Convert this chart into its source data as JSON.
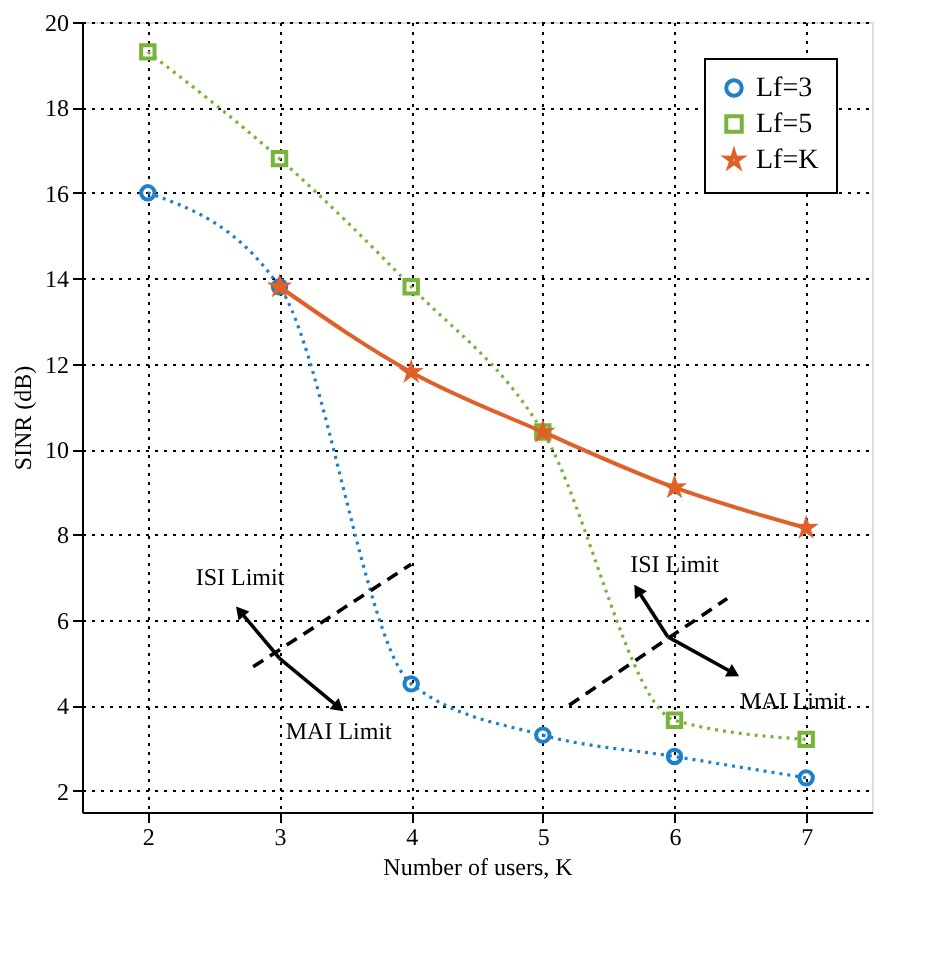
{
  "chart_data": {
    "type": "line",
    "xlabel": "Number of users, K",
    "ylabel": "SINR (dB)",
    "series": [
      {
        "name": "Lf=3",
        "color": "#1f7fc8",
        "x": [
          2,
          3,
          4,
          5,
          6,
          7
        ],
        "values": [
          16,
          13.8,
          4.5,
          3.3,
          2.8,
          2.3
        ],
        "marker": "circle",
        "line_style": "dotted"
      },
      {
        "name": "Lf=5",
        "color": "#78b43c",
        "x": [
          2,
          3,
          4,
          5,
          6,
          7
        ],
        "values": [
          19.3,
          16.8,
          13.8,
          10.4,
          3.65,
          3.2
        ],
        "marker": "square",
        "line_style": "dotted"
      },
      {
        "name": "Lf=K",
        "color": "#e0602a",
        "x": [
          3,
          4,
          5,
          6,
          7
        ],
        "values": [
          13.8,
          11.8,
          10.4,
          9.1,
          8.15
        ],
        "marker": "star",
        "line_style": "solid"
      },
      {
        "color": "#000000",
        "x": [
          2.8,
          4.0
        ],
        "values": [
          4.9,
          7.3
        ],
        "marker": "none",
        "line_style": "dashed"
      },
      {
        "color": "#000000",
        "x": [
          5.2,
          6.4
        ],
        "values": [
          4.0,
          6.5
        ],
        "marker": "none",
        "line_style": "dashed"
      }
    ],
    "xlim": [
      1.5,
      7.5
    ],
    "xticks": [
      2,
      3,
      4,
      5,
      6,
      7
    ],
    "ylim": [
      1.5,
      20
    ],
    "yticks": [
      2,
      4,
      6,
      8,
      10,
      12,
      14,
      16,
      18,
      20
    ],
    "grid": true,
    "legend": "top right",
    "annotations": [
      "ISI Limit",
      "MAI Limit",
      "ISI Limit",
      "MAI Limit"
    ]
  }
}
